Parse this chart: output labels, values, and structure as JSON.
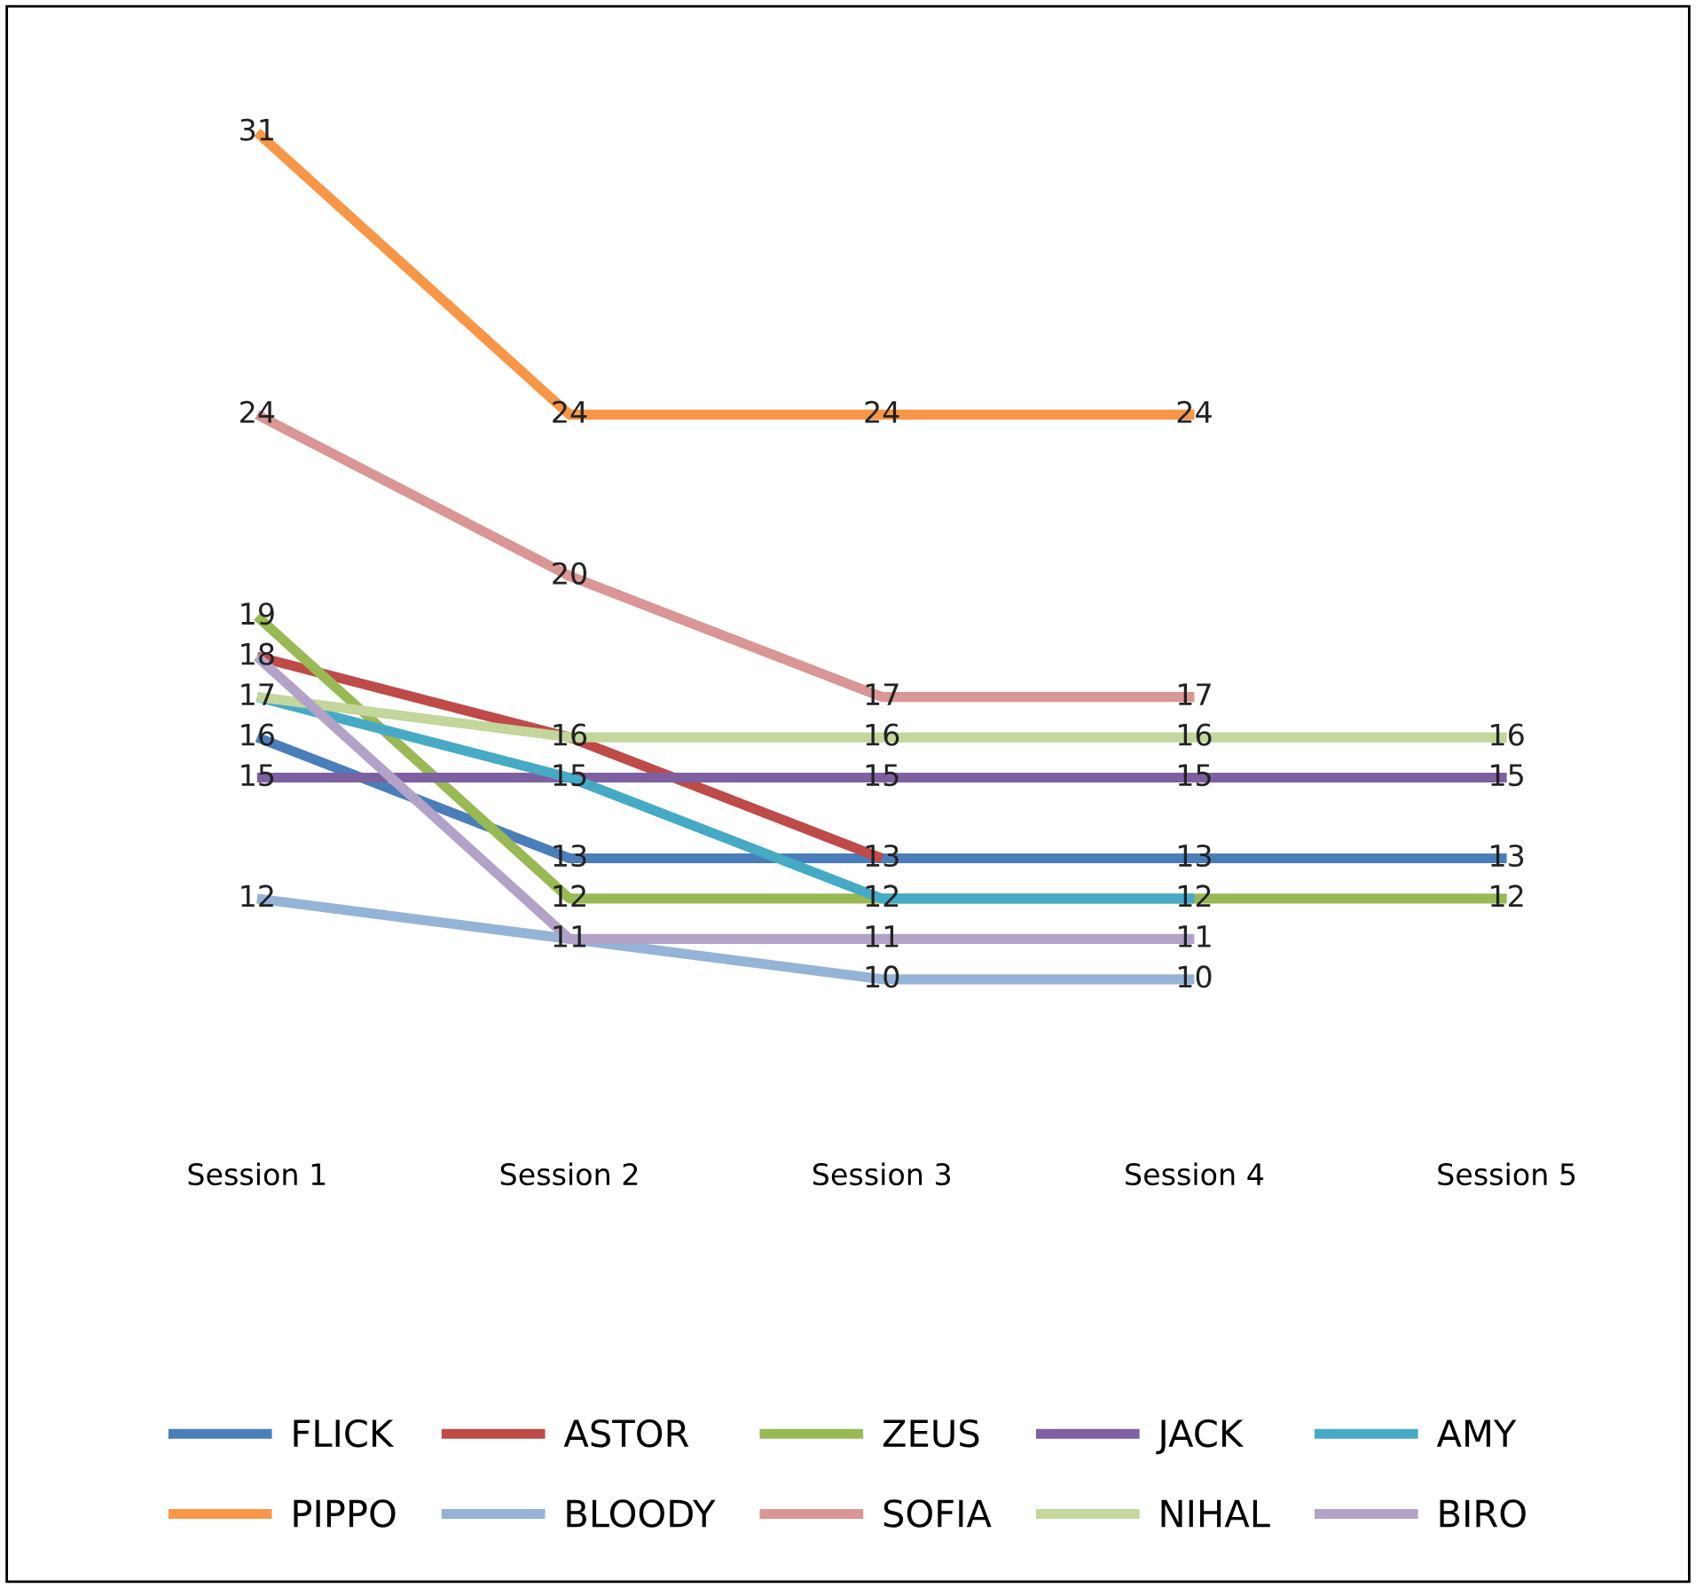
{
  "chart_data": {
    "type": "line",
    "categories": [
      "Session 1",
      "Session 2",
      "Session 3",
      "Session 4",
      "Session 5"
    ],
    "series": [
      {
        "name": "FLICK",
        "color": "#4a7ebb",
        "values": [
          16,
          13,
          13,
          13,
          13
        ],
        "value_labels": [
          "16",
          "13",
          "13",
          "13",
          "13"
        ]
      },
      {
        "name": "ASTOR",
        "color": "#be4b48",
        "values": [
          18,
          16,
          13,
          null,
          null
        ],
        "value_labels": [
          "18",
          "16",
          null,
          null,
          null
        ]
      },
      {
        "name": "ZEUS",
        "color": "#98b954",
        "values": [
          19,
          12,
          12,
          12,
          12
        ],
        "value_labels": [
          "19",
          "12",
          "12",
          "12",
          "12"
        ]
      },
      {
        "name": "JACK",
        "color": "#7d60a0",
        "values": [
          15,
          15,
          15,
          15,
          15
        ],
        "value_labels": [
          "15",
          "15",
          "15",
          "15",
          "15"
        ]
      },
      {
        "name": "AMY",
        "color": "#46aac5",
        "values": [
          17,
          15,
          12,
          12,
          null
        ],
        "value_labels": [
          "17",
          null,
          null,
          null,
          null
        ]
      },
      {
        "name": "PIPPO",
        "color": "#f79646",
        "values": [
          31,
          24,
          24,
          24,
          null
        ],
        "value_labels": [
          "31",
          "24",
          "24",
          "24",
          null
        ]
      },
      {
        "name": "BLOODY",
        "color": "#95b3d7",
        "values": [
          12,
          11,
          10,
          10,
          null
        ],
        "value_labels": [
          "12",
          "11",
          "10",
          "10",
          null
        ]
      },
      {
        "name": "SOFIA",
        "color": "#d99694",
        "values": [
          24,
          20,
          17,
          17,
          null
        ],
        "value_labels": [
          "24",
          "20",
          "17",
          "17",
          null
        ]
      },
      {
        "name": "NIHAL",
        "color": "#c3d69b",
        "values": [
          17,
          16,
          16,
          16,
          16
        ],
        "value_labels": [
          null,
          null,
          "16",
          "16",
          "16"
        ]
      },
      {
        "name": "BIRO",
        "color": "#b3a2c7",
        "values": [
          18,
          11,
          11,
          11,
          null
        ],
        "value_labels": [
          null,
          null,
          "11",
          "11",
          null
        ]
      }
    ],
    "tick_labels": "x",
    "grid": false,
    "legend": "bottom",
    "marker": "none",
    "line_style": "solid"
  }
}
